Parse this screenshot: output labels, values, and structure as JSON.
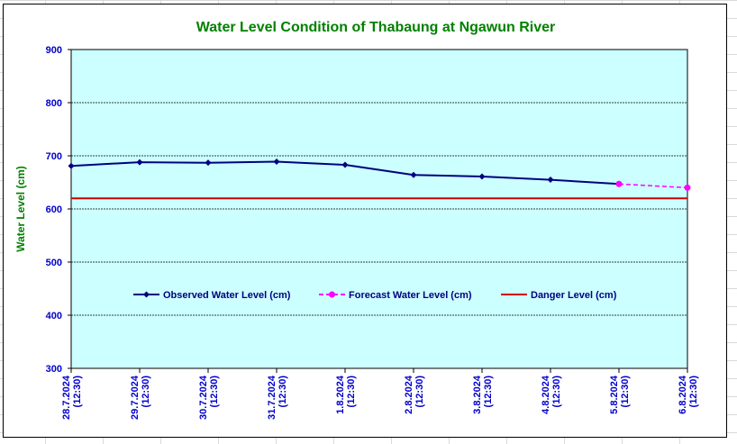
{
  "chart_data": {
    "type": "line",
    "title": "Water Level Condition of Thabaung at Ngawun River",
    "xlabel": "",
    "ylabel": "Water Level (cm)",
    "ylim": [
      300,
      900
    ],
    "yticks": [
      300,
      400,
      500,
      600,
      700,
      800,
      900
    ],
    "grid": true,
    "legend_position": "center",
    "categories": [
      {
        "date": "28.7.2024",
        "time": "(12:30)"
      },
      {
        "date": "29.7.2024",
        "time": "(12:30)"
      },
      {
        "date": "30.7.2024",
        "time": "(12:30)"
      },
      {
        "date": "31.7.2024",
        "time": "(12:30)"
      },
      {
        "date": "1.8.2024",
        "time": "(12:30)"
      },
      {
        "date": "2.8.2024",
        "time": "(12:30)"
      },
      {
        "date": "3.8.2024",
        "time": "(12:30)"
      },
      {
        "date": "4.8.2024",
        "time": "(12:30)"
      },
      {
        "date": "5.8.2024",
        "time": "(12:30)"
      },
      {
        "date": "6.8.2024",
        "time": "(12:30)"
      }
    ],
    "series": [
      {
        "name": "Observed Water Level (cm)",
        "color": "#000080",
        "style": "solid-diamond",
        "values": [
          681,
          688,
          687,
          689,
          683,
          664,
          661,
          655,
          647,
          null
        ]
      },
      {
        "name": "Forecast Water Level (cm)",
        "color": "#ff00ff",
        "style": "dashed-circle",
        "values": [
          null,
          null,
          null,
          null,
          null,
          null,
          null,
          null,
          647,
          640
        ]
      },
      {
        "name": "Danger Level (cm)",
        "color": "#cc0000",
        "style": "solid",
        "values": [
          620,
          620,
          620,
          620,
          620,
          620,
          620,
          620,
          620,
          620
        ]
      }
    ],
    "colors": {
      "plot_background": "#ccffff",
      "title": "#008000",
      "ylabel": "#008000",
      "ticks": "#0000cc"
    }
  }
}
